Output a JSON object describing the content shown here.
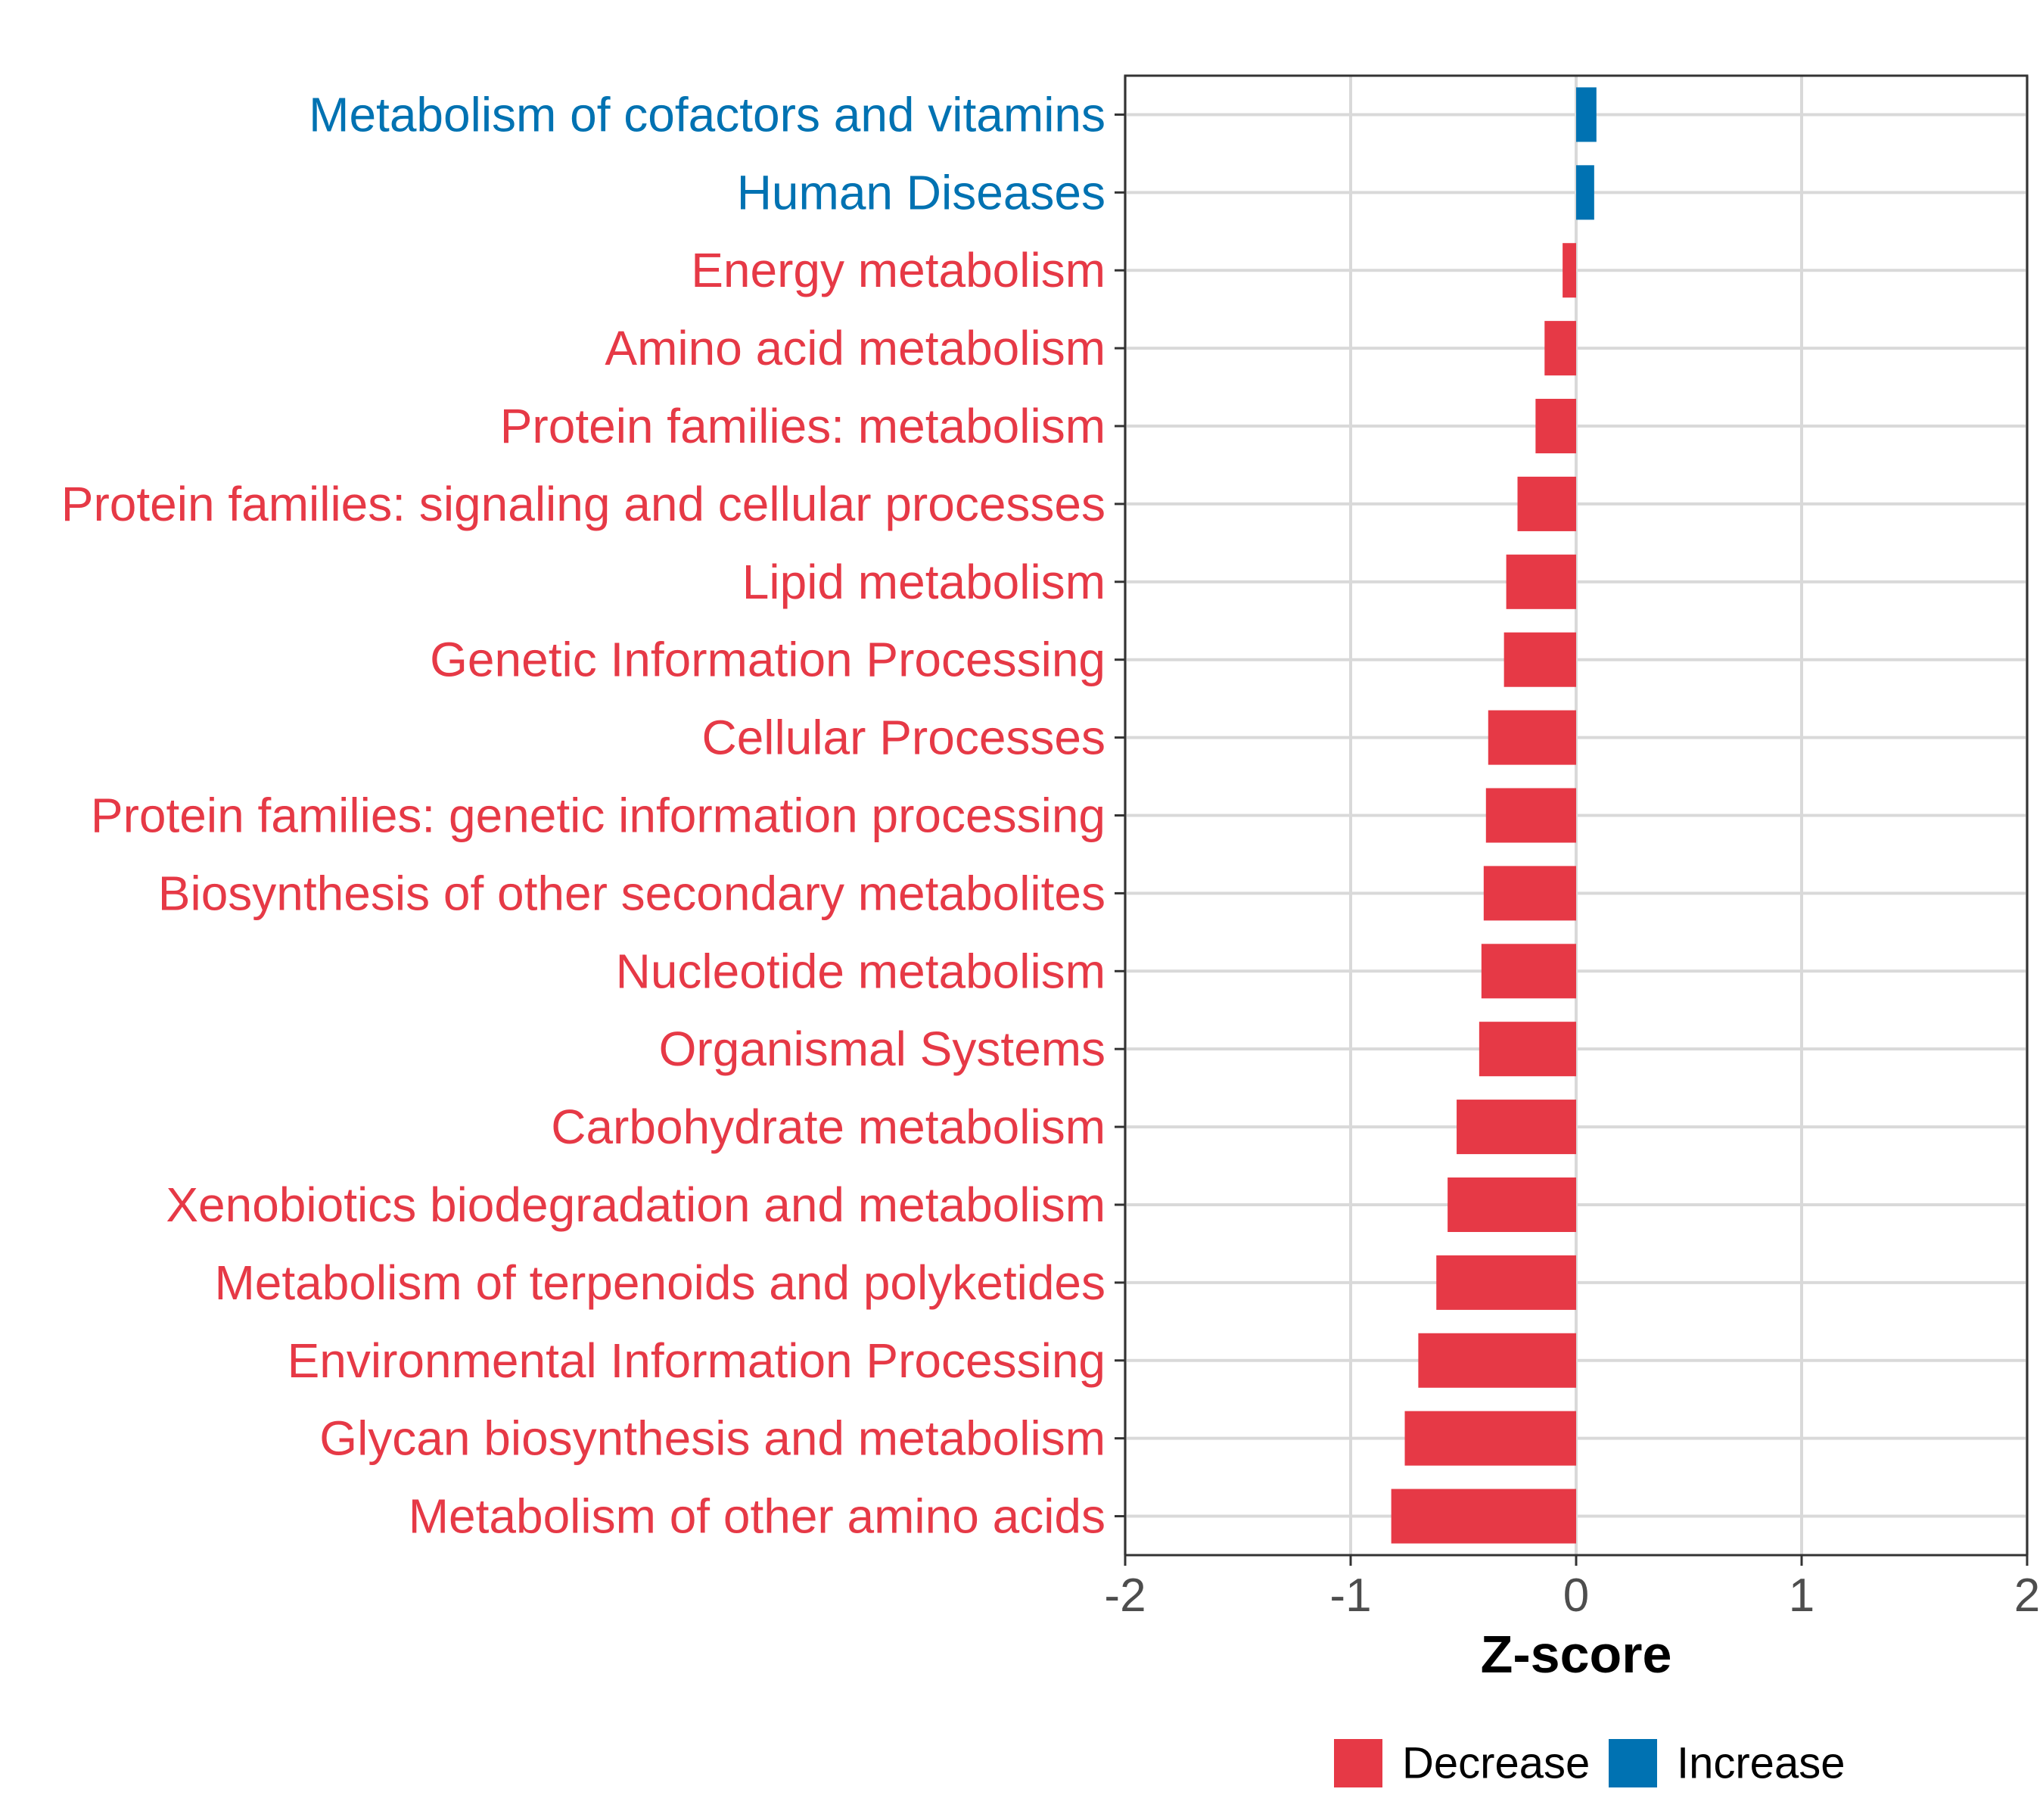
{
  "chart_data": {
    "type": "bar",
    "orientation": "horizontal",
    "title": "",
    "xlabel": "Z-score",
    "ylabel": "",
    "xlim": [
      -2,
      2
    ],
    "xticks": [
      -2,
      -1,
      0,
      1,
      2
    ],
    "xtick_labels": [
      "-2",
      "-1",
      "0",
      "1",
      "2"
    ],
    "grid": true,
    "categories": [
      "Metabolism of cofactors and vitamins",
      "Human Diseases",
      "Energy metabolism",
      "Amino acid metabolism",
      "Protein families: metabolism",
      "Protein families: signaling and cellular processes",
      "Lipid metabolism",
      "Genetic Information Processing",
      "Cellular Processes",
      "Protein families: genetic information processing",
      "Biosynthesis of other secondary metabolites",
      "Nucleotide metabolism",
      "Organismal Systems",
      "Carbohydrate metabolism",
      "Xenobiotics biodegradation and metabolism",
      "Metabolism of terpenoids and polyketides",
      "Environmental Information Processing",
      "Glycan biosynthesis and metabolism",
      "Metabolism of other amino acids"
    ],
    "values": [
      0.09,
      0.08,
      -0.06,
      -0.14,
      -0.18,
      -0.26,
      -0.31,
      -0.32,
      -0.39,
      -0.4,
      -0.41,
      -0.42,
      -0.43,
      -0.53,
      -0.57,
      -0.62,
      -0.7,
      -0.76,
      -0.82
    ],
    "groups": [
      "Increase",
      "Increase",
      "Decrease",
      "Decrease",
      "Decrease",
      "Decrease",
      "Decrease",
      "Decrease",
      "Decrease",
      "Decrease",
      "Decrease",
      "Decrease",
      "Decrease",
      "Decrease",
      "Decrease",
      "Decrease",
      "Decrease",
      "Decrease",
      "Decrease"
    ],
    "legend": {
      "position": "bottom",
      "entries": [
        {
          "label": "Decrease",
          "color": "#e63946"
        },
        {
          "label": "Increase",
          "color": "#0072b2"
        }
      ]
    },
    "colors": {
      "Decrease": "#e63946",
      "Increase": "#0072b2"
    }
  }
}
